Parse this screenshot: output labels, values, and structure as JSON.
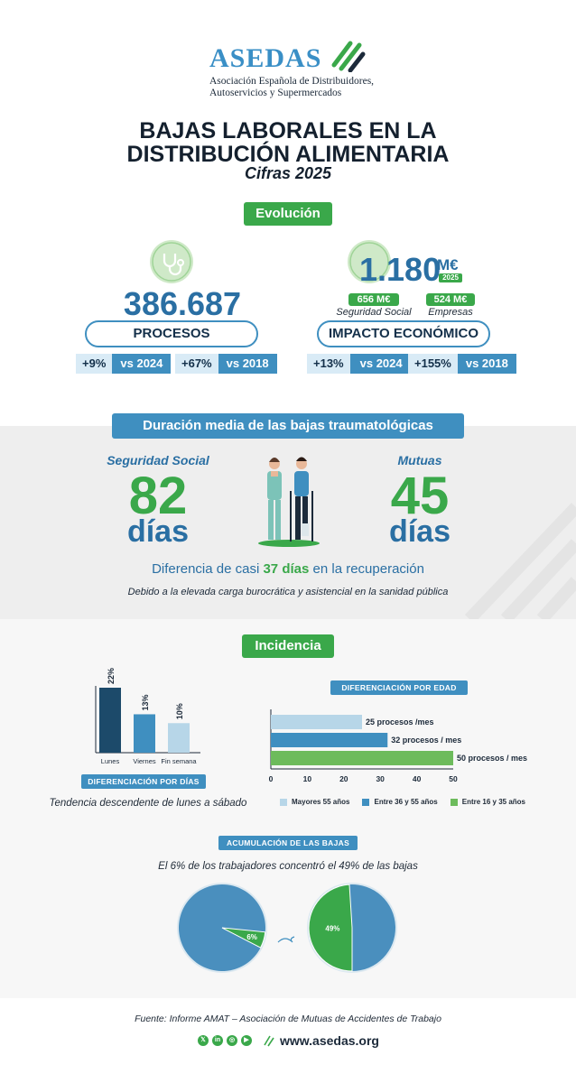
{
  "header": {
    "logo_text": "ASEDAS",
    "logo_subtitle_1": "Asociación Española de Distribuidores,",
    "logo_subtitle_2": "Autoservicios y Supermercados",
    "title_line1": "BAJAS LABORALES EN LA",
    "title_line2": "DISTRIBUCIÓN ALIMENTARIA",
    "subtitle": "Cifras 2025"
  },
  "evolucion": {
    "label": "Evolución",
    "procesos": {
      "value": "386.687",
      "label": "PROCESOS",
      "stats": [
        {
          "change": "+9%",
          "vs": "vs 2024"
        },
        {
          "change": "+67%",
          "vs": "vs 2018"
        }
      ]
    },
    "impacto": {
      "value": "1.180",
      "unit": "M€",
      "year": "2025",
      "ss_value": "656 M€",
      "ss_label": "Seguridad Social",
      "emp_value": "524 M€",
      "emp_label": "Empresas",
      "label": "IMPACTO ECONÓMICO",
      "stats": [
        {
          "change": "+13%",
          "vs": "vs 2024"
        },
        {
          "change": "+155%",
          "vs": "vs 2018"
        }
      ]
    }
  },
  "duracion": {
    "title": "Duración media de las bajas traumatológicas",
    "ss_label": "Seguridad Social",
    "ss_value": "82",
    "ss_unit": "días",
    "mutuas_label": "Mutuas",
    "mutuas_value": "45",
    "mutuas_unit": "días",
    "diff_pre": "Diferencia de casi",
    "diff_bold": "37 días",
    "diff_post": "en la recuperación",
    "note": "Debido a la elevada carga burocrática y asistencial en la sanidad pública"
  },
  "incidencia": {
    "label": "Incidencia",
    "por_dias_badge": "DIFERENCIACIÓN POR DÍAS",
    "trend": "Tendencia descendente de lunes a sábado",
    "por_edad_badge": "DIFERENCIACIÓN POR EDAD",
    "acumulacion_badge": "ACUMULACIÓN DE LAS BAJAS",
    "acumulacion_text": "El 6% de los trabajadores concentró el 49% de las bajas"
  },
  "footer": {
    "source": "Fuente: Informe AMAT – Asociación de Mutuas de Accidentes de Trabajo",
    "url": "www.asedas.org"
  },
  "colors": {
    "green": "#3aa84a",
    "blue": "#3f8fc0",
    "navy": "#1c4a6a",
    "light_blue": "#b7d6e8"
  },
  "chart_data": [
    {
      "type": "bar",
      "categories": [
        "Lunes",
        "Viernes",
        "Fin semana"
      ],
      "values": [
        22,
        13,
        10
      ],
      "value_labels": [
        "22%",
        "13%",
        "10%"
      ],
      "colors": [
        "#1c4a6a",
        "#3f8fc0",
        "#b7d6e8"
      ],
      "title": "DIFERENCIACIÓN POR DÍAS",
      "ylim": [
        0,
        22
      ]
    },
    {
      "type": "bar",
      "orientation": "horizontal",
      "title": "DIFERENCIACIÓN POR EDAD",
      "series": [
        {
          "name": "Mayores 55 años",
          "value": 25,
          "label": "25 procesos /mes",
          "color": "#b7d6e8"
        },
        {
          "name": "Entre 36 y 55 años",
          "value": 32,
          "label": "32 procesos / mes",
          "color": "#3f8fc0"
        },
        {
          "name": "Entre 16 y 35 años",
          "value": 50,
          "label": "50 procesos / mes",
          "color": "#6dbb5c"
        }
      ],
      "x_ticks": [
        "0",
        "10",
        "20",
        "30",
        "40",
        "50"
      ],
      "xlim": [
        0,
        50
      ]
    },
    {
      "type": "pie",
      "title": "ACUMULACIÓN DE LAS BAJAS",
      "pies": [
        {
          "slices": [
            {
              "label": "6%",
              "value": 6,
              "color": "#3aa84a"
            },
            {
              "value": 94,
              "color": "#4a8fbe"
            }
          ]
        },
        {
          "slices": [
            {
              "label": "49%",
              "value": 49,
              "color": "#3aa84a"
            },
            {
              "value": 51,
              "color": "#4a8fbe"
            }
          ]
        }
      ]
    }
  ]
}
